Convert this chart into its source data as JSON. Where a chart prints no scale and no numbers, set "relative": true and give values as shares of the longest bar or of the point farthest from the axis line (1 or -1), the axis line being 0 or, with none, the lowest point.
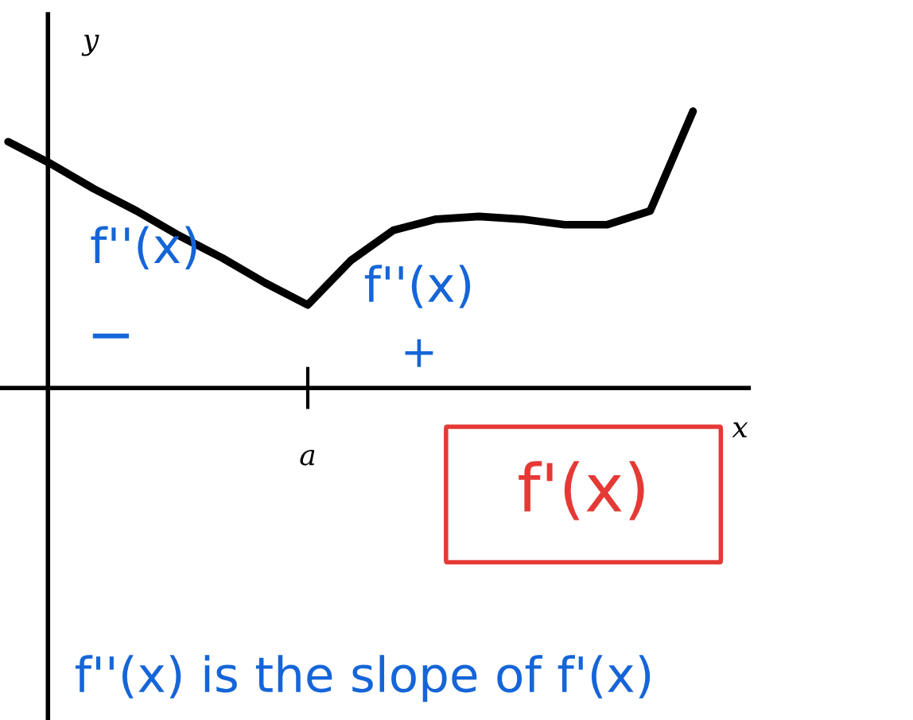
{
  "chart_data": {
    "type": "line",
    "relative": true,
    "xlabel": "x",
    "ylabel": "y",
    "color": "#000000",
    "categories": [
      null,
      null,
      null,
      null,
      null,
      null,
      null,
      null,
      null,
      null,
      null,
      null,
      null,
      null,
      null,
      null,
      null
    ],
    "values": [
      0.89,
      0.81,
      0.72,
      0.64,
      0.55,
      0.47,
      0.38,
      0.3,
      0.46,
      0.57,
      0.61,
      0.62,
      0.61,
      0.59,
      0.59,
      0.64,
      1.0
    ],
    "annotations": [
      "f''(x)",
      "−",
      "f''(x)",
      "+",
      "f'(x)",
      "f''(x) is the slope of f'(x)",
      "a"
    ]
  }
}
